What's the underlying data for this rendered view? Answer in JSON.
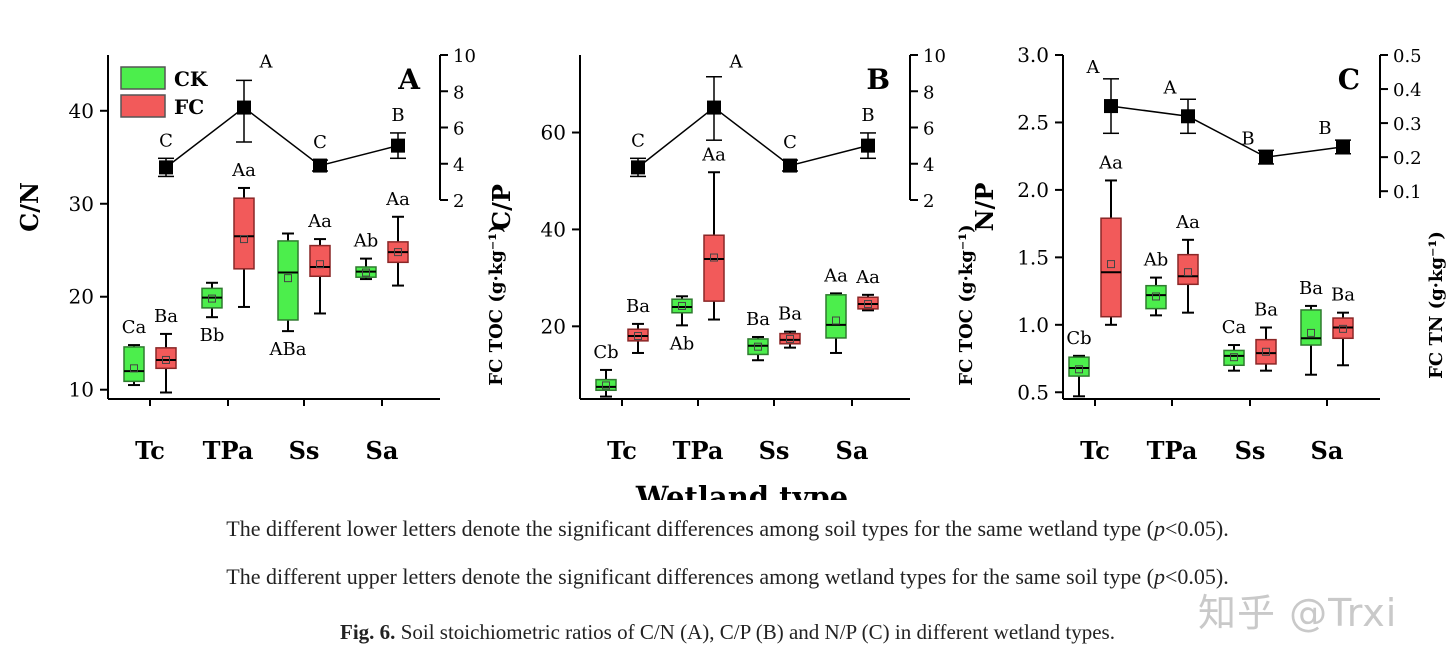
{
  "chart_data": [
    {
      "type": "box",
      "panel_label": "A",
      "ylabel": "C/N",
      "y2label": "FC  TOC (g·kg⁻¹)",
      "xlabel": "Wetland type",
      "ylim": [
        9,
        46
      ],
      "yticks": [
        10,
        20,
        30,
        40
      ],
      "y2lim": [
        2,
        10
      ],
      "y2ticks": [
        2,
        4,
        6,
        8,
        10
      ],
      "categories": [
        "Tc",
        "TPa",
        "Ss",
        "Sa"
      ],
      "legend": [
        {
          "name": "CK",
          "color": "#4cee4c"
        },
        {
          "name": "FC",
          "color": "#f25a5a"
        }
      ],
      "series": [
        {
          "name": "CK",
          "boxes": [
            {
              "min": 10.5,
              "q1": 10.9,
              "median": 12.0,
              "q3": 14.6,
              "max": 14.8,
              "mean": 12.3,
              "label": "Ca"
            },
            {
              "min": 17.8,
              "q1": 18.8,
              "median": 19.9,
              "q3": 20.9,
              "max": 21.5,
              "mean": 19.8,
              "label": "Bb"
            },
            {
              "min": 16.3,
              "q1": 17.5,
              "median": 22.6,
              "q3": 26.0,
              "max": 26.8,
              "mean": 22.0,
              "label": "ABa"
            },
            {
              "min": 21.9,
              "q1": 22.1,
              "median": 22.7,
              "q3": 23.2,
              "max": 24.1,
              "mean": 22.6,
              "label": "Ab"
            }
          ]
        },
        {
          "name": "FC",
          "boxes": [
            {
              "min": 9.7,
              "q1": 12.3,
              "median": 13.2,
              "q3": 14.5,
              "max": 16.0,
              "mean": 13.2,
              "label": "Ba"
            },
            {
              "min": 18.9,
              "q1": 23.0,
              "median": 26.5,
              "q3": 30.6,
              "max": 31.7,
              "mean": 26.2,
              "label": "Aa"
            },
            {
              "min": 18.2,
              "q1": 22.2,
              "median": 23.2,
              "q3": 25.5,
              "max": 26.2,
              "mean": 23.5,
              "label": "Aa"
            },
            {
              "min": 21.2,
              "q1": 23.7,
              "median": 24.8,
              "q3": 25.9,
              "max": 28.6,
              "mean": 24.8,
              "label": "Aa"
            }
          ]
        }
      ],
      "line_series": {
        "name": "FC TOC",
        "values": [
          3.8,
          7.1,
          3.9,
          5.0
        ],
        "err_low": [
          3.3,
          5.2,
          3.6,
          4.3
        ],
        "err_high": [
          4.3,
          8.6,
          4.2,
          5.7
        ],
        "labels": [
          "C",
          "A",
          "C",
          "B"
        ]
      }
    },
    {
      "type": "box",
      "panel_label": "B",
      "ylabel": "C/P",
      "y2label": "FC  TOC (g·kg⁻¹)",
      "xlabel": "Wetland type",
      "ylim": [
        5,
        76
      ],
      "yticks": [
        20,
        40,
        60
      ],
      "y2lim": [
        2,
        10
      ],
      "y2ticks": [
        2,
        4,
        6,
        8,
        10
      ],
      "categories": [
        "Tc",
        "TPa",
        "Ss",
        "Sa"
      ],
      "series": [
        {
          "name": "CK",
          "boxes": [
            {
              "min": 5.5,
              "q1": 6.8,
              "median": 7.5,
              "q3": 9.0,
              "max": 11.0,
              "mean": 7.8,
              "label": "Cb"
            },
            {
              "min": 20.2,
              "q1": 22.8,
              "median": 24.0,
              "q3": 25.6,
              "max": 26.2,
              "mean": 24.2,
              "label": "Ab"
            },
            {
              "min": 13.0,
              "q1": 14.2,
              "median": 16.0,
              "q3": 17.4,
              "max": 17.8,
              "mean": 15.8,
              "label": "Ba"
            },
            {
              "min": 14.5,
              "q1": 17.6,
              "median": 20.3,
              "q3": 26.5,
              "max": 26.8,
              "mean": 21.2,
              "label": "Aa"
            }
          ]
        },
        {
          "name": "FC",
          "boxes": [
            {
              "min": 14.5,
              "q1": 17.0,
              "median": 18.0,
              "q3": 19.4,
              "max": 20.5,
              "mean": 18.0,
              "label": "Ba"
            },
            {
              "min": 21.4,
              "q1": 25.2,
              "median": 33.9,
              "q3": 38.8,
              "max": 51.8,
              "mean": 34.2,
              "label": "Aa"
            },
            {
              "min": 15.6,
              "q1": 16.4,
              "median": 17.2,
              "q3": 18.5,
              "max": 18.9,
              "mean": 17.4,
              "label": "Ba"
            },
            {
              "min": 23.3,
              "q1": 23.6,
              "median": 24.6,
              "q3": 26.0,
              "max": 26.5,
              "mean": 24.6,
              "label": "Aa"
            }
          ]
        }
      ],
      "line_series": {
        "name": "FC TOC",
        "values": [
          3.8,
          7.1,
          3.9,
          5.0
        ],
        "err_low": [
          3.3,
          5.3,
          3.6,
          4.3
        ],
        "err_high": [
          4.3,
          8.8,
          4.2,
          5.7
        ],
        "labels": [
          "C",
          "A",
          "C",
          "B"
        ]
      }
    },
    {
      "type": "box",
      "panel_label": "C",
      "ylabel": "N/P",
      "y2label": "FC  TN (g·kg⁻¹)",
      "xlabel": "Wetland type",
      "ylim": [
        0.45,
        3.0
      ],
      "yticks": [
        0.5,
        1.0,
        1.5,
        2.0,
        2.5,
        3.0
      ],
      "y2lim": [
        0.08,
        0.5
      ],
      "y2ticks": [
        0.1,
        0.2,
        0.3,
        0.4,
        0.5
      ],
      "categories": [
        "Tc",
        "TPa",
        "Ss",
        "Sa"
      ],
      "series": [
        {
          "name": "CK",
          "boxes": [
            {
              "min": 0.47,
              "q1": 0.62,
              "median": 0.68,
              "q3": 0.76,
              "max": 0.77,
              "mean": 0.67,
              "label": "Cb"
            },
            {
              "min": 1.07,
              "q1": 1.12,
              "median": 1.22,
              "q3": 1.29,
              "max": 1.35,
              "mean": 1.21,
              "label": "Ab"
            },
            {
              "min": 0.66,
              "q1": 0.7,
              "median": 0.77,
              "q3": 0.81,
              "max": 0.85,
              "mean": 0.76,
              "label": "Ca"
            },
            {
              "min": 0.63,
              "q1": 0.85,
              "median": 0.9,
              "q3": 1.11,
              "max": 1.14,
              "mean": 0.94,
              "label": "Ba"
            }
          ]
        },
        {
          "name": "FC",
          "boxes": [
            {
              "min": 1.0,
              "q1": 1.06,
              "median": 1.39,
              "q3": 1.79,
              "max": 2.07,
              "mean": 1.45,
              "label": "Aa"
            },
            {
              "min": 1.09,
              "q1": 1.3,
              "median": 1.36,
              "q3": 1.52,
              "max": 1.63,
              "mean": 1.39,
              "label": "Aa"
            },
            {
              "min": 0.66,
              "q1": 0.71,
              "median": 0.79,
              "q3": 0.89,
              "max": 0.98,
              "mean": 0.8,
              "label": "Ba"
            },
            {
              "min": 0.7,
              "q1": 0.9,
              "median": 0.98,
              "q3": 1.05,
              "max": 1.09,
              "mean": 0.97,
              "label": "Ba"
            }
          ]
        }
      ],
      "line_series": {
        "name": "FC TN",
        "values": [
          0.35,
          0.32,
          0.2,
          0.23
        ],
        "err_low": [
          0.27,
          0.27,
          0.18,
          0.21
        ],
        "err_high": [
          0.43,
          0.37,
          0.22,
          0.25
        ],
        "labels": [
          "A",
          "A",
          "B",
          "B"
        ]
      }
    }
  ],
  "xaxis_title": "Wetland type",
  "note_line1_before": "The different lower letters denote the significant differences among soil types for the same wetland type (",
  "note_line2_before": "The different upper letters denote the significant differences among wetland types for the same soil type (",
  "note_p": "p",
  "note_after": "<0.05).",
  "caption_bold": "Fig. 6.",
  "caption_text": " Soil stoichiometric ratios of C/N (A), C/P (B) and N/P (C) in different wetland types.",
  "watermark": "知乎 @Trxi"
}
